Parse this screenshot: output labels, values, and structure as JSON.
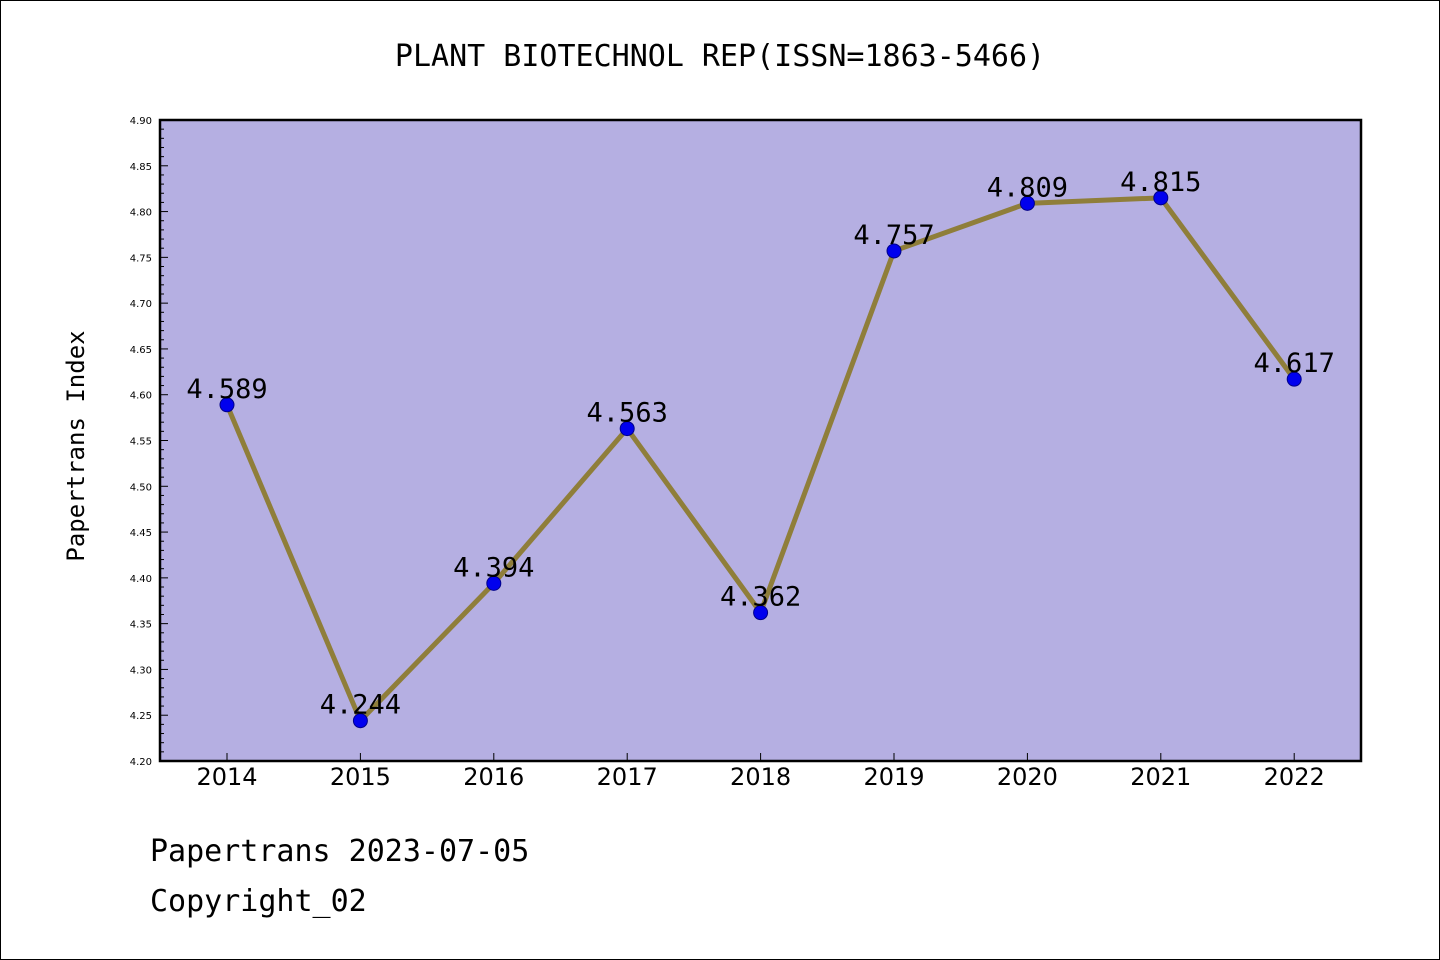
{
  "chart_data": {
    "type": "line",
    "title": "PLANT BIOTECHNOL REP(ISSN=1863-5466)",
    "ylabel": "Papertrans Index",
    "xlabel": "",
    "categories": [
      "2014",
      "2015",
      "2016",
      "2017",
      "2018",
      "2019",
      "2020",
      "2021",
      "2022"
    ],
    "values": [
      4.589,
      4.244,
      4.394,
      4.563,
      4.362,
      4.757,
      4.809,
      4.815,
      4.617
    ],
    "value_labels": [
      "4.589",
      "4.244",
      "4.394",
      "4.563",
      "4.362",
      "4.757",
      "4.809",
      "4.815",
      "4.617"
    ],
    "ylim": [
      4.2,
      4.9
    ],
    "yticks": [
      "4.20",
      "4.25",
      "4.30",
      "4.35",
      "4.40",
      "4.45",
      "4.50",
      "4.55",
      "4.60",
      "4.65",
      "4.70",
      "4.75",
      "4.80",
      "4.85",
      "4.90"
    ],
    "grid": false,
    "colors": {
      "plot_background": "#b5afe2",
      "line": "#8f7e3a",
      "marker": "#0000ee"
    }
  },
  "footer": {
    "line1": "Papertrans 2023-07-05",
    "line2": "Copyright_02"
  }
}
